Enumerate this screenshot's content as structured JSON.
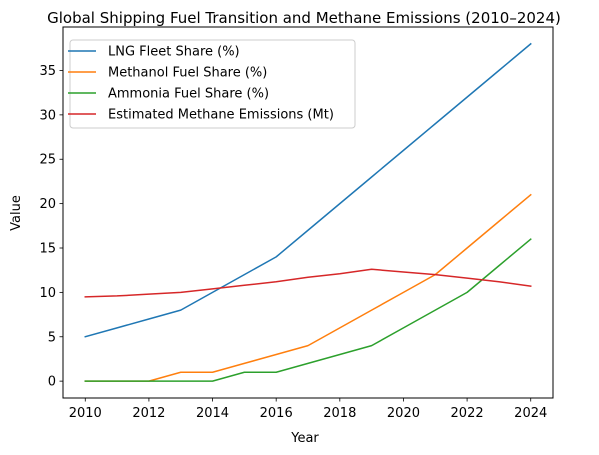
{
  "chart_data": {
    "type": "line",
    "title": "Global Shipping Fuel Transition and Methane Emissions (2010–2024)",
    "xlabel": "Year",
    "ylabel": "Value",
    "x": [
      2010,
      2011,
      2012,
      2013,
      2014,
      2015,
      2016,
      2017,
      2018,
      2019,
      2020,
      2021,
      2022,
      2023,
      2024
    ],
    "xlim": [
      2009.3,
      2024.7
    ],
    "ylim": [
      -1.9,
      39.9
    ],
    "xticks": [
      2010,
      2012,
      2014,
      2016,
      2018,
      2020,
      2022,
      2024
    ],
    "yticks": [
      0,
      5,
      10,
      15,
      20,
      25,
      30,
      35
    ],
    "grid": false,
    "legend_position": "top-left",
    "series": [
      {
        "name": "LNG Fleet Share (%)",
        "color": "#1f77b4",
        "values": [
          5,
          6,
          7,
          8,
          10,
          12,
          14,
          17,
          20,
          23,
          26,
          29,
          32,
          35,
          38
        ]
      },
      {
        "name": "Methanol Fuel Share (%)",
        "color": "#ff7f0e",
        "values": [
          0,
          0,
          0,
          1,
          1,
          2,
          3,
          4,
          6,
          8,
          10,
          12,
          15,
          18,
          21
        ]
      },
      {
        "name": "Ammonia Fuel Share (%)",
        "color": "#2ca02c",
        "values": [
          0,
          0,
          0,
          0,
          0,
          1,
          1,
          2,
          3,
          4,
          6,
          8,
          10,
          13,
          16
        ]
      },
      {
        "name": "Estimated Methane Emissions (Mt)",
        "color": "#d62728",
        "values": [
          9.5,
          9.6,
          9.8,
          10.0,
          10.4,
          10.8,
          11.2,
          11.7,
          12.1,
          12.6,
          12.3,
          12.0,
          11.6,
          11.2,
          10.7
        ]
      }
    ]
  }
}
